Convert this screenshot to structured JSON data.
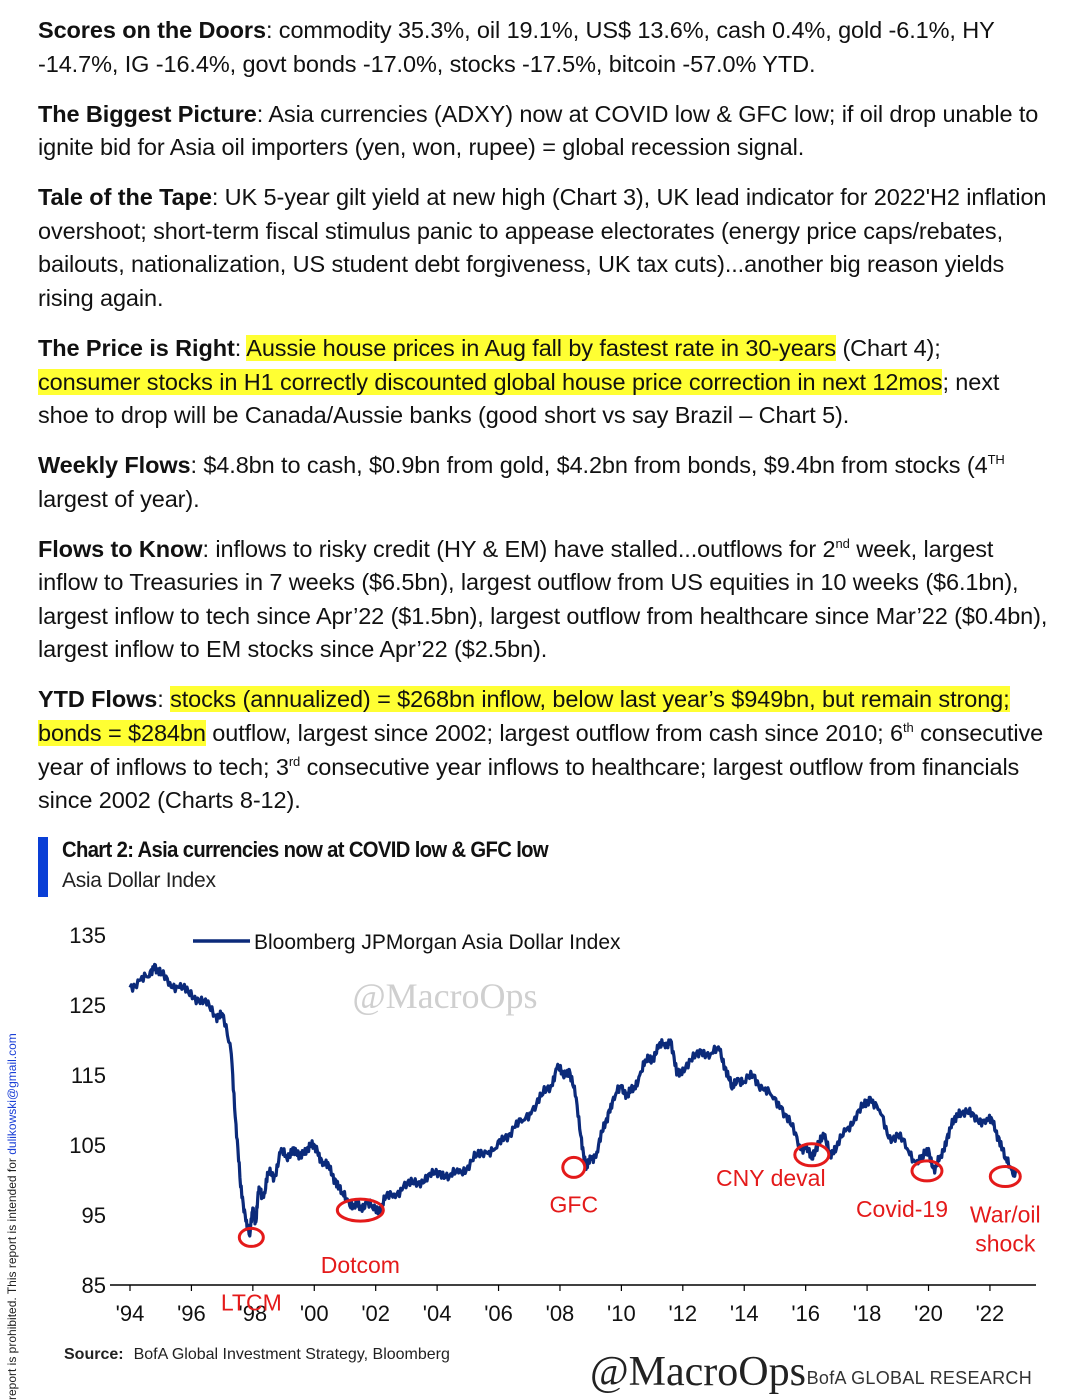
{
  "paragraphs": {
    "scores": {
      "title": "Scores on the Doors",
      "text": ": commodity 35.3%, oil 19.1%, US$ 13.6%, cash 0.4%, gold -6.1%, HY -14.7%, IG -16.4%, govt bonds -17.0%, stocks -17.5%, bitcoin -57.0% YTD."
    },
    "biggest_picture": {
      "title": "The Biggest Picture",
      "text": ": Asia currencies (ADXY) now at COVID low & GFC low; if oil drop unable to ignite bid for Asia oil importers (yen, won, rupee) = global recession signal."
    },
    "tale": {
      "title": "Tale of the Tape",
      "text": ": UK 5-year gilt yield at new high (Chart 3), UK lead indicator for 2022'H2 inflation overshoot; short-term fiscal stimulus panic to appease electorates (energy price caps/rebates, bailouts, nationalization, US student debt forgiveness, UK tax cuts)...another big reason yields rising again."
    },
    "price": {
      "title": "The Price is Right",
      "sep": ": ",
      "hl1": "Aussie house prices in Aug fall by fastest rate in 30-years",
      "mid": " (Chart 4); ",
      "hl2": "consumer stocks in H1 correctly discounted global house price correction in next 12mos",
      "end": "; next shoe to drop will be Canada/Aussie banks (good short vs say Brazil – Chart 5)."
    },
    "weekly": {
      "title": "Weekly Flows",
      "text": ": $4.8bn to cash, $0.9bn from gold, $4.2bn from bonds, $9.4bn from stocks (4",
      "sup": "TH",
      "end": " largest of year)."
    },
    "flows_know": {
      "title": "Flows to Know",
      "text": ": inflows to risky credit (HY & EM) have stalled...outflows for 2",
      "sup": "nd",
      "end": " week, largest inflow to Treasuries in 7 weeks ($6.5bn), largest outflow from US equities in 10 weeks ($6.1bn), largest inflow to tech since Apr’22 ($1.5bn), largest outflow from healthcare since Mar’22 ($0.4bn), largest inflow to EM stocks since Apr’22 ($2.5bn)."
    },
    "ytd": {
      "title": "YTD Flows",
      "sep": ": ",
      "hl": "stocks (annualized) = $268bn inflow, below last year’s $949bn, but remain strong; bonds = $284bn",
      "text1": " outflow, largest since 2002; largest outflow from cash since 2010; 6",
      "sup1": "th",
      "text2": " consecutive year of inflows to tech; 3",
      "sup2": "rd",
      "text3": " consecutive year inflows to healthcare; largest outflow from financials since 2002 (Charts 8-12)."
    }
  },
  "chart_data": {
    "type": "line",
    "title": "Chart 2: Asia currencies now at COVID low & GFC low",
    "subtitle": "Asia Dollar Index",
    "ylim": [
      85,
      135
    ],
    "yticks": [
      85,
      95,
      105,
      115,
      125,
      135
    ],
    "xlim": [
      1994,
      2023.5
    ],
    "xticks": [
      1994,
      1996,
      1998,
      2000,
      2002,
      2004,
      2006,
      2008,
      2010,
      2012,
      2014,
      2016,
      2018,
      2020,
      2022
    ],
    "xtick_labels": [
      "'94",
      "'96",
      "'98",
      "'00",
      "'02",
      "'04",
      "'06",
      "'08",
      "'10",
      "'12",
      "'14",
      "'16",
      "'18",
      "'20",
      "'22"
    ],
    "legend_position": "top-left",
    "grid": false,
    "series": [
      {
        "name": "Bloomberg JPMorgan Asia Dollar Index",
        "color": "#0b2a7a",
        "x": [
          1994.0,
          1994.3,
          1994.6,
          1994.8,
          1995.0,
          1995.3,
          1995.6,
          1995.9,
          1996.2,
          1996.5,
          1996.8,
          1997.0,
          1997.3,
          1997.45,
          1997.6,
          1997.75,
          1997.9,
          1998.0,
          1998.1,
          1998.2,
          1998.35,
          1998.5,
          1998.7,
          1998.9,
          1999.1,
          1999.3,
          1999.5,
          1999.7,
          1999.9,
          2000.1,
          2000.3,
          2000.5,
          2000.7,
          2000.9,
          2001.1,
          2001.3,
          2001.5,
          2001.7,
          2001.9,
          2002.1,
          2002.3,
          2002.6,
          2002.9,
          2003.2,
          2003.5,
          2003.8,
          2004.1,
          2004.4,
          2004.7,
          2005.0,
          2005.3,
          2005.6,
          2005.9,
          2006.2,
          2006.5,
          2006.8,
          2007.1,
          2007.4,
          2007.7,
          2007.9,
          2008.1,
          2008.3,
          2008.5,
          2008.7,
          2008.85,
          2009.0,
          2009.2,
          2009.4,
          2009.6,
          2009.8,
          2010.0,
          2010.2,
          2010.4,
          2010.6,
          2010.8,
          2011.0,
          2011.2,
          2011.4,
          2011.6,
          2011.8,
          2012.0,
          2012.3,
          2012.6,
          2012.9,
          2013.2,
          2013.4,
          2013.6,
          2013.8,
          2014.0,
          2014.3,
          2014.6,
          2014.9,
          2015.2,
          2015.5,
          2015.8,
          2016.0,
          2016.2,
          2016.4,
          2016.6,
          2016.8,
          2017.0,
          2017.3,
          2017.6,
          2017.9,
          2018.1,
          2018.4,
          2018.7,
          2019.0,
          2019.3,
          2019.6,
          2019.8,
          2020.0,
          2020.2,
          2020.4,
          2020.6,
          2020.8,
          2021.0,
          2021.3,
          2021.6,
          2021.9,
          2022.1,
          2022.3,
          2022.5,
          2022.7,
          2022.85
        ],
        "values": [
          127.5,
          128.5,
          129.0,
          130.8,
          129.3,
          128.2,
          127.5,
          126.8,
          126.0,
          125.0,
          123.5,
          123.8,
          118.0,
          108.0,
          99.0,
          95.0,
          92.0,
          96.0,
          94.0,
          99.0,
          97.5,
          101.0,
          100.5,
          104.0,
          103.2,
          104.6,
          103.0,
          104.5,
          104.8,
          104.2,
          102.5,
          101.5,
          100.0,
          98.0,
          97.0,
          96.3,
          96.0,
          96.8,
          96.0,
          95.8,
          97.2,
          98.0,
          99.0,
          99.5,
          100.0,
          100.5,
          101.2,
          100.5,
          101.0,
          102.0,
          103.5,
          104.0,
          104.5,
          106.0,
          107.5,
          108.5,
          110.0,
          112.0,
          113.5,
          116.0,
          115.0,
          115.8,
          112.0,
          106.0,
          101.5,
          103.0,
          104.0,
          107.0,
          110.0,
          112.0,
          113.5,
          112.0,
          113.0,
          115.0,
          117.0,
          117.5,
          118.8,
          119.5,
          120.0,
          115.0,
          116.0,
          117.0,
          118.5,
          118.0,
          118.5,
          116.0,
          113.0,
          114.5,
          114.0,
          115.0,
          113.0,
          112.0,
          110.5,
          108.0,
          105.0,
          104.5,
          103.0,
          105.5,
          106.0,
          104.0,
          104.5,
          107.0,
          109.0,
          110.5,
          111.8,
          110.0,
          106.0,
          106.5,
          104.5,
          102.5,
          103.0,
          104.5,
          101.0,
          103.5,
          106.0,
          108.0,
          110.0,
          109.5,
          108.5,
          108.8,
          108.0,
          106.0,
          103.0,
          101.5,
          101.0
        ]
      }
    ],
    "annotations": [
      {
        "text": "LTCM",
        "x": 1997.95,
        "y": 91.8
      },
      {
        "text": "Dotcom",
        "x": 2001.5,
        "y": 95.7
      },
      {
        "text": "GFC",
        "x": 2008.45,
        "y": 101.8
      },
      {
        "text": "CNY deval",
        "x": 2016.2,
        "y": 103.6
      },
      {
        "text": "Covid-19",
        "x": 2019.95,
        "y": 101.3
      },
      {
        "text": "War/oil shock",
        "x": 2022.5,
        "y": 100.5
      }
    ],
    "annotation_color": "#e41a1a",
    "watermark": "@MacroOps"
  },
  "footer": {
    "source_label": "Source:",
    "source_text": "BofA Global Investment Strategy, Bloomberg",
    "watermark": "@MacroOps",
    "brand": "BofA GLOBAL RESEARCH",
    "side_note": "report is prohibited. This report is intended for ",
    "side_email": "dulikowski@gmail.com"
  },
  "colors": {
    "highlight": "#ffff33",
    "accent_bar": "#0a3fd6",
    "annotation": "#e41a1a",
    "line": "#0b2a7a"
  }
}
